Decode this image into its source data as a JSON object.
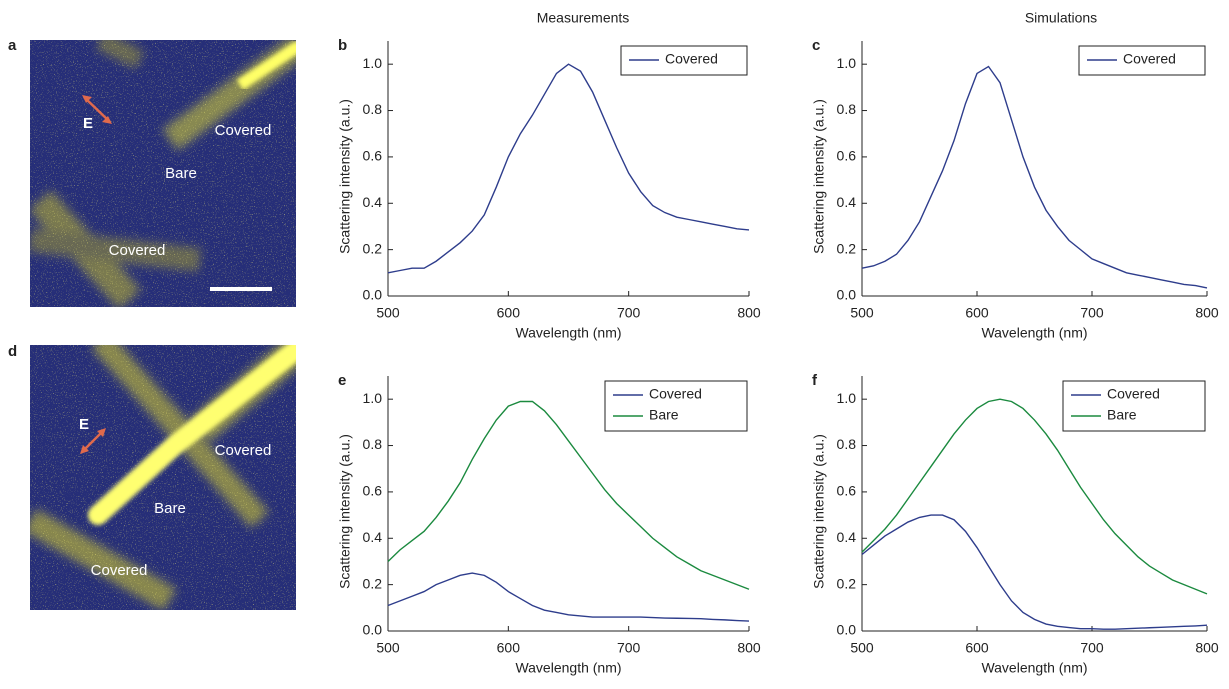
{
  "column_titles": [
    "Measurements",
    "Simulations"
  ],
  "images": [
    {
      "letter": "a",
      "labels": [
        "E",
        "Covered",
        "Bare",
        "Covered"
      ]
    },
    {
      "letter": "d",
      "labels": [
        "E",
        "Covered",
        "Bare",
        "Covered"
      ]
    }
  ],
  "chart_data": [
    {
      "type": "line",
      "letter": "b",
      "xlabel": "Wavelength (nm)",
      "ylabel": "Scattering intensity (a.u.)",
      "xlim": [
        500,
        800
      ],
      "ylim": [
        0,
        1.1
      ],
      "xticks": [
        500,
        600,
        700,
        800
      ],
      "yticks": [
        {
          "value": 0,
          "label": "0.0"
        },
        0.2,
        0.4,
        0.6,
        0.8,
        {
          "value": 1,
          "label": "1.0"
        }
      ],
      "legend": "upper right",
      "x": [
        500,
        510,
        520,
        530,
        540,
        550,
        560,
        570,
        580,
        590,
        600,
        610,
        620,
        630,
        640,
        650,
        660,
        670,
        680,
        690,
        700,
        710,
        720,
        730,
        740,
        750,
        760,
        770,
        780,
        790,
        800
      ],
      "series": [
        {
          "name": "Covered",
          "color": "#2e3d8c",
          "values": [
            0.1,
            0.11,
            0.12,
            0.12,
            0.15,
            0.19,
            0.23,
            0.28,
            0.35,
            0.47,
            0.6,
            0.7,
            0.78,
            0.87,
            0.96,
            1.0,
            0.97,
            0.88,
            0.76,
            0.64,
            0.53,
            0.45,
            0.39,
            0.36,
            0.34,
            0.33,
            0.32,
            0.31,
            0.3,
            0.29,
            0.285
          ]
        }
      ]
    },
    {
      "type": "line",
      "letter": "c",
      "xlabel": "Wavelength (nm)",
      "ylabel": "Scattering intensity (a.u.)",
      "xlim": [
        500,
        800
      ],
      "ylim": [
        0,
        1.1
      ],
      "xticks": [
        500,
        600,
        700,
        800
      ],
      "yticks": [
        {
          "value": 0,
          "label": "0.0"
        },
        0.2,
        0.4,
        0.6,
        0.8,
        {
          "value": 1,
          "label": "1.0"
        }
      ],
      "legend": "upper right",
      "x": [
        500,
        510,
        520,
        530,
        540,
        550,
        560,
        570,
        580,
        590,
        600,
        610,
        620,
        630,
        640,
        650,
        660,
        670,
        680,
        690,
        700,
        710,
        720,
        730,
        740,
        750,
        760,
        770,
        780,
        790,
        800
      ],
      "series": [
        {
          "name": "Covered",
          "color": "#2e3d8c",
          "values": [
            0.12,
            0.13,
            0.15,
            0.18,
            0.24,
            0.32,
            0.43,
            0.54,
            0.67,
            0.83,
            0.96,
            0.99,
            0.92,
            0.76,
            0.6,
            0.47,
            0.37,
            0.3,
            0.24,
            0.2,
            0.16,
            0.14,
            0.12,
            0.1,
            0.09,
            0.08,
            0.07,
            0.06,
            0.05,
            0.045,
            0.035
          ]
        }
      ]
    },
    {
      "type": "line",
      "letter": "e",
      "xlabel": "Wavelength (nm)",
      "ylabel": "Scattering intensity (a.u.)",
      "xlim": [
        500,
        800
      ],
      "ylim": [
        0,
        1.1
      ],
      "xticks": [
        500,
        600,
        700,
        800
      ],
      "yticks": [
        {
          "value": 0,
          "label": "0.0"
        },
        0.2,
        0.4,
        0.6,
        0.8,
        {
          "value": 1,
          "label": "1.0"
        }
      ],
      "legend": "upper right",
      "x": [
        500,
        510,
        520,
        530,
        540,
        550,
        560,
        570,
        580,
        590,
        600,
        610,
        620,
        630,
        640,
        650,
        660,
        670,
        680,
        690,
        700,
        710,
        720,
        730,
        740,
        750,
        760,
        770,
        780,
        790,
        800
      ],
      "series": [
        {
          "name": "Covered",
          "color": "#2e3d8c",
          "values": [
            0.11,
            0.13,
            0.15,
            0.17,
            0.2,
            0.22,
            0.24,
            0.25,
            0.24,
            0.21,
            0.17,
            0.14,
            0.11,
            0.09,
            0.08,
            0.07,
            0.065,
            0.06,
            0.06,
            0.06,
            0.06,
            0.06,
            0.058,
            0.056,
            0.055,
            0.054,
            0.053,
            0.05,
            0.048,
            0.045,
            0.043
          ]
        },
        {
          "name": "Bare",
          "color": "#1b8a3f",
          "values": [
            0.3,
            0.35,
            0.39,
            0.43,
            0.49,
            0.56,
            0.64,
            0.74,
            0.83,
            0.91,
            0.97,
            0.99,
            0.99,
            0.95,
            0.89,
            0.82,
            0.75,
            0.68,
            0.61,
            0.55,
            0.5,
            0.45,
            0.4,
            0.36,
            0.32,
            0.29,
            0.26,
            0.24,
            0.22,
            0.2,
            0.18
          ]
        }
      ]
    },
    {
      "type": "line",
      "letter": "f",
      "xlabel": "Wavelength (nm)",
      "ylabel": "Scattering intensity (a.u.)",
      "xlim": [
        500,
        800
      ],
      "ylim": [
        0,
        1.1
      ],
      "xticks": [
        500,
        600,
        700,
        800
      ],
      "yticks": [
        {
          "value": 0,
          "label": "0.0"
        },
        0.2,
        0.4,
        0.6,
        0.8,
        {
          "value": 1,
          "label": "1.0"
        }
      ],
      "legend": "upper right",
      "x": [
        500,
        510,
        520,
        530,
        540,
        550,
        560,
        570,
        580,
        590,
        600,
        610,
        620,
        630,
        640,
        650,
        660,
        670,
        680,
        690,
        700,
        710,
        720,
        730,
        740,
        750,
        760,
        770,
        780,
        790,
        800
      ],
      "series": [
        {
          "name": "Covered",
          "color": "#2e3d8c",
          "values": [
            0.33,
            0.37,
            0.41,
            0.44,
            0.47,
            0.49,
            0.5,
            0.5,
            0.48,
            0.43,
            0.36,
            0.28,
            0.2,
            0.13,
            0.08,
            0.05,
            0.03,
            0.02,
            0.015,
            0.01,
            0.01,
            0.008,
            0.008,
            0.01,
            0.012,
            0.014,
            0.016,
            0.018,
            0.02,
            0.022,
            0.025
          ]
        },
        {
          "name": "Bare",
          "color": "#1b8a3f",
          "values": [
            0.34,
            0.39,
            0.44,
            0.5,
            0.57,
            0.64,
            0.71,
            0.78,
            0.85,
            0.91,
            0.96,
            0.99,
            1.0,
            0.99,
            0.96,
            0.91,
            0.85,
            0.78,
            0.7,
            0.62,
            0.55,
            0.48,
            0.42,
            0.37,
            0.32,
            0.28,
            0.25,
            0.22,
            0.2,
            0.18,
            0.16
          ]
        }
      ]
    }
  ]
}
